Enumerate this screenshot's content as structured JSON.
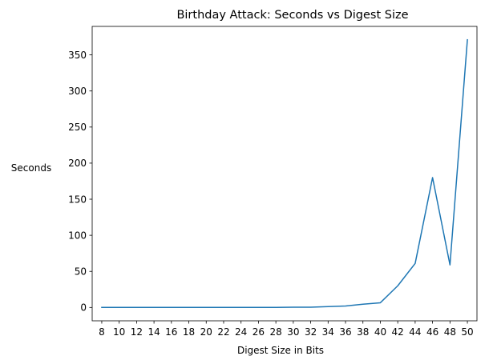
{
  "chart_data": {
    "type": "line",
    "title": "Birthday Attack: Seconds vs Digest Size",
    "xlabel": "Digest Size in Bits",
    "ylabel": "Seconds",
    "x": [
      8,
      10,
      12,
      14,
      16,
      18,
      20,
      22,
      24,
      26,
      28,
      30,
      32,
      34,
      36,
      38,
      40,
      42,
      44,
      46,
      48,
      50
    ],
    "x_tick_labels": [
      "8",
      "10",
      "12",
      "14",
      "16",
      "18",
      "20",
      "22",
      "24",
      "26",
      "28",
      "30",
      "32",
      "34",
      "36",
      "38",
      "40",
      "42",
      "44",
      "46",
      "48",
      "50"
    ],
    "y_ticks": [
      0,
      50,
      100,
      150,
      200,
      250,
      300,
      350
    ],
    "y_tick_labels": [
      "0",
      "50",
      "100",
      "150",
      "200",
      "250",
      "300",
      "350"
    ],
    "series": [
      {
        "color": "#1f77b4",
        "values": [
          0,
          0,
          0,
          0,
          0,
          0,
          0,
          0,
          0,
          0.1,
          0.1,
          0.3,
          0.3,
          1.2,
          2,
          4.5,
          6.5,
          30,
          61,
          180,
          59,
          371
        ]
      }
    ],
    "xlim": [
      6.9,
      51.1
    ],
    "ylim": [
      -18.5,
      389.5
    ],
    "grid": false,
    "legend": "none"
  }
}
